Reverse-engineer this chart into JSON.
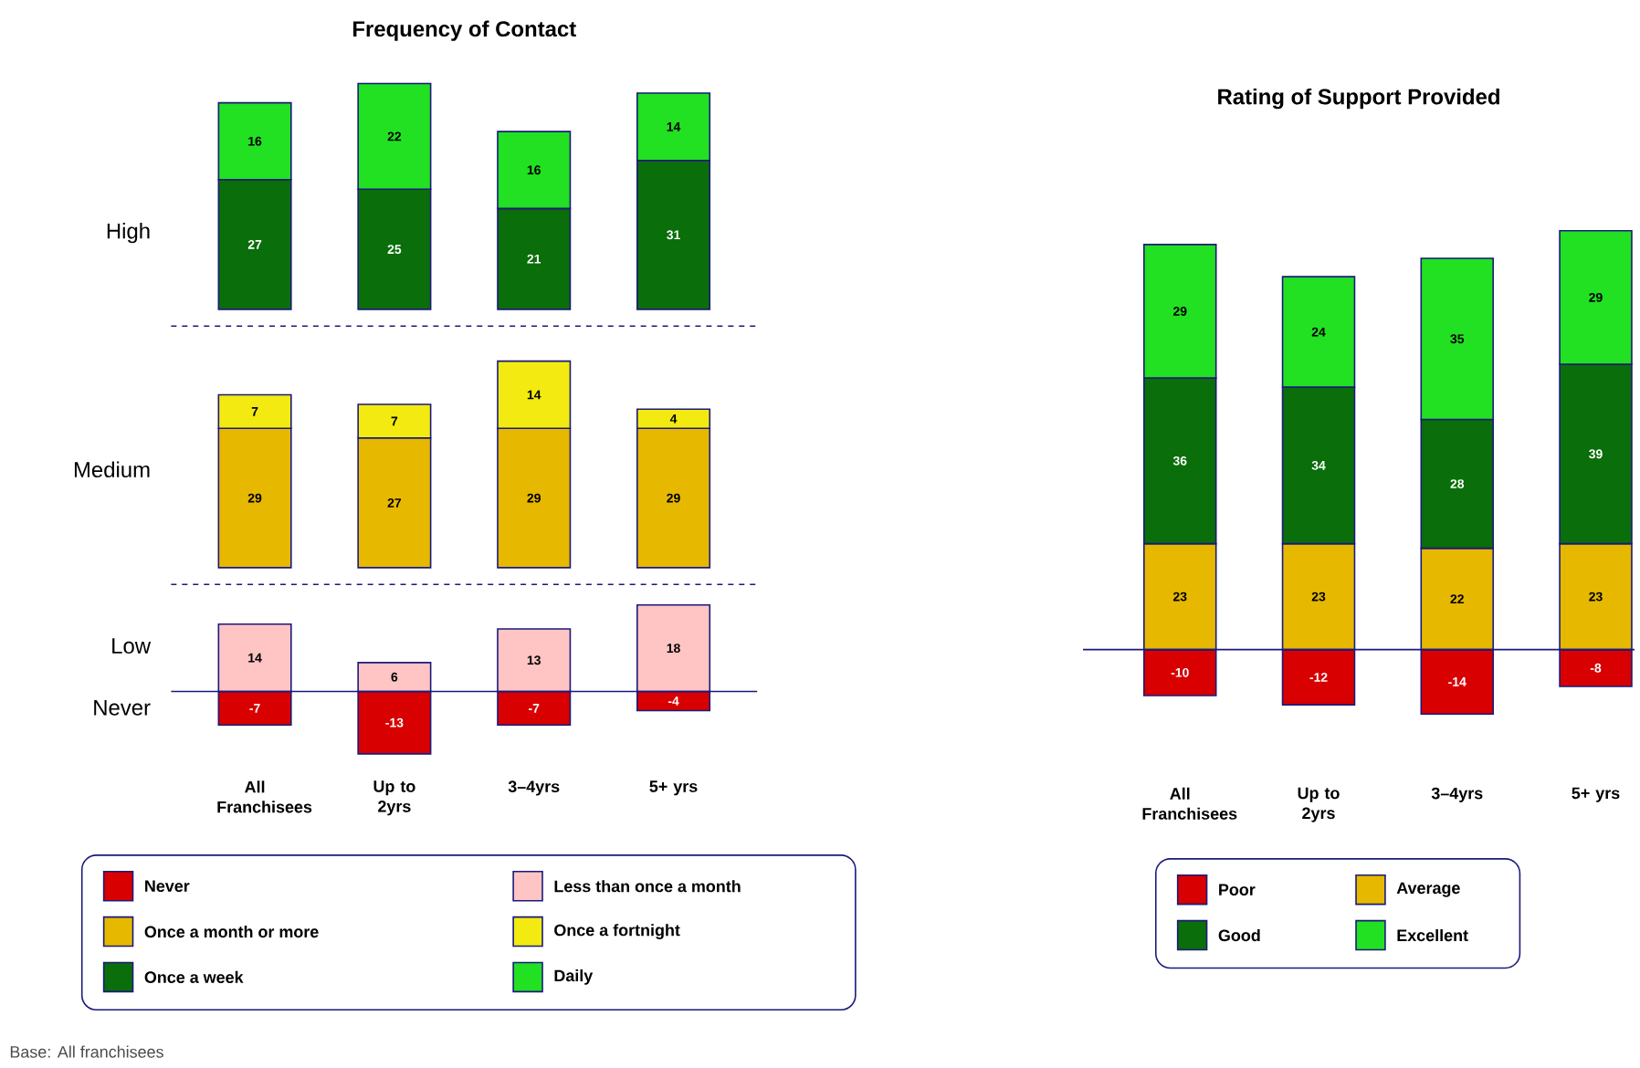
{
  "chart_data": [
    {
      "type": "bar",
      "title": "Frequency of Contact",
      "stacked": true,
      "legend": "bottom",
      "data_labels": true,
      "categories": [
        null,
        null,
        null,
        null
      ],
      "annotations": [
        "High"
      ],
      "series": [
        {
          "name": "Once a week",
          "color": "#0a6e0a",
          "values": [
            27,
            25,
            21,
            31
          ]
        },
        {
          "name": "Daily",
          "color": "#22e022",
          "values": [
            16,
            22,
            16,
            14
          ]
        }
      ]
    },
    {
      "type": "bar",
      "stacked": true,
      "data_labels": true,
      "categories": [
        null,
        null,
        null,
        null
      ],
      "annotations": [
        "Medium"
      ],
      "legend": "bottom",
      "series": [
        {
          "name": "Once a month or more",
          "color": "#e6b800",
          "values": [
            29,
            27,
            29,
            29
          ]
        },
        {
          "name": "Once a fortnight",
          "color": "#f2ea10",
          "values": [
            7,
            7,
            14,
            4
          ]
        }
      ]
    },
    {
      "type": "bar",
      "stacked": true,
      "data_labels": true,
      "legend": "bottom",
      "categories": [
        "All Franchisees",
        "Up to 2yrs",
        "3–4yrs",
        "5+ yrs"
      ],
      "annotations": [
        "Low",
        "Never",
        "Base: All franchisees"
      ],
      "ref_lines": [
        {
          "axis": "y",
          "value": 0,
          "color": "#1a1a7a"
        }
      ],
      "series": [
        {
          "name": "Never",
          "color": "#d80000",
          "values": [
            -7,
            -13,
            -7,
            -4
          ]
        },
        {
          "name": "Less than once a month",
          "color": "#ffc4c4",
          "values": [
            14,
            6,
            13,
            18
          ]
        }
      ]
    },
    {
      "type": "bar",
      "title": "Rating of Support Provided",
      "stacked": true,
      "data_labels": true,
      "legend": "bottom",
      "categories": [
        "All Franchisees",
        "Up to 2yrs",
        "3–4yrs",
        "5+ yrs"
      ],
      "ref_lines": [
        {
          "axis": "y",
          "value": 0,
          "color": "#1a1a7a"
        }
      ],
      "series": [
        {
          "name": "Poor",
          "color": "#d80000",
          "values": [
            -10,
            -12,
            -14,
            -8
          ]
        },
        {
          "name": "Average",
          "color": "#e6b800",
          "values": [
            23,
            23,
            22,
            23
          ]
        },
        {
          "name": "Good",
          "color": "#0a6e0a",
          "values": [
            36,
            34,
            28,
            39
          ]
        },
        {
          "name": "Excellent",
          "color": "#22e022",
          "values": [
            29,
            24,
            35,
            29
          ]
        }
      ]
    }
  ]
}
